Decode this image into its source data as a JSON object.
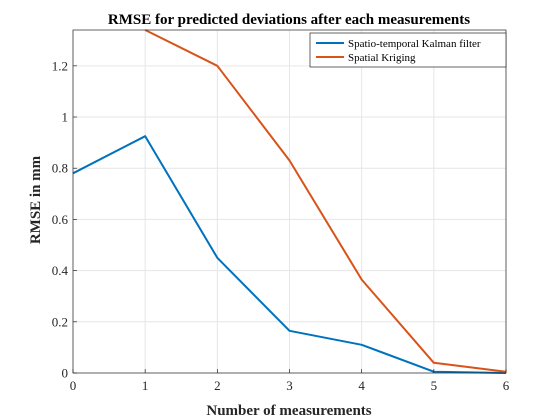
{
  "chart_data": {
    "type": "line",
    "title": "RMSE for predicted deviations after each measurements",
    "xlabel": "Number of measurements",
    "ylabel": "RMSE in mm",
    "xlim": [
      0,
      6
    ],
    "ylim": [
      0,
      1.34
    ],
    "xticks": [
      0,
      1,
      2,
      3,
      4,
      5,
      6
    ],
    "yticks": [
      0,
      0.2,
      0.4,
      0.6,
      0.8,
      1,
      1.2
    ],
    "ytick_labels": [
      "0",
      "0.2",
      "0.4",
      "0.6",
      "0.8",
      "1",
      "1.2"
    ],
    "grid": true,
    "legend_position": "top-right",
    "series": [
      {
        "name": "Spatio-temporal Kalman filter",
        "color": "#0072BD",
        "x": [
          0,
          1,
          2,
          3,
          4,
          5,
          6
        ],
        "y": [
          0.78,
          0.925,
          0.45,
          0.165,
          0.11,
          0.005,
          0.0
        ]
      },
      {
        "name": "Spatial Kriging",
        "color": "#D95319",
        "x": [
          1,
          2,
          3,
          4,
          5,
          6
        ],
        "y": [
          1.34,
          1.2,
          0.83,
          0.365,
          0.04,
          0.005
        ]
      }
    ]
  }
}
